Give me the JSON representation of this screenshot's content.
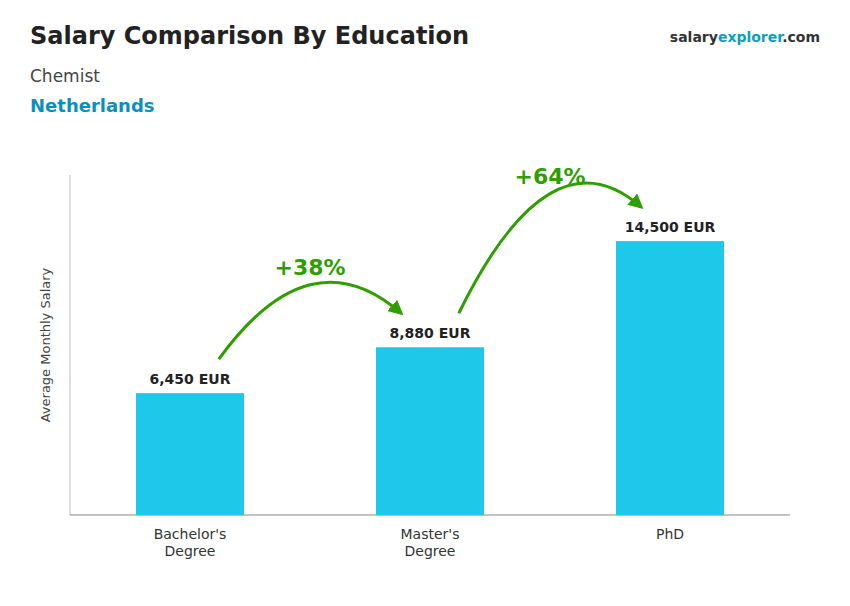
{
  "chart_data": {
    "type": "bar",
    "title": "Salary Comparison By Education",
    "subtitle": [
      "Chemist",
      "Netherlands"
    ],
    "ylabel": "Average Monthly Salary",
    "watermark": [
      "salary",
      "explorer",
      ".com"
    ],
    "categories": [
      "Bachelor's\nDegree",
      "Master's\nDegree",
      "PhD"
    ],
    "values": [
      6450,
      8880,
      14500
    ],
    "value_labels": [
      "6,450 EUR",
      "8,880 EUR",
      "14,500 EUR"
    ],
    "data_labels": true,
    "annotations": [
      "+38%",
      "+64%"
    ],
    "color": "#1ec8e8",
    "ylim": [
      0,
      18000
    ],
    "yticks": [],
    "tick_labels": "x",
    "grid": false
  }
}
